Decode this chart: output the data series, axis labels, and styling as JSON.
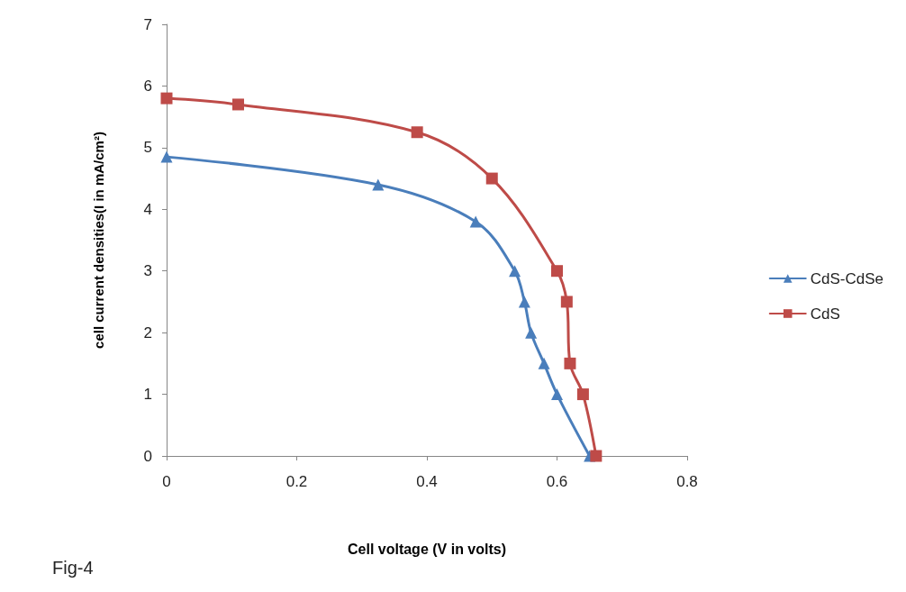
{
  "chart_data": {
    "type": "line",
    "xlabel": "Cell voltage (V in volts)",
    "ylabel": "cell current densities(I in mA/cm²)",
    "xlim": [
      0,
      0.8
    ],
    "xticks": [
      0,
      0.2,
      0.4,
      0.6,
      0.8
    ],
    "ylim": [
      0,
      7
    ],
    "yticks": [
      0,
      1,
      2,
      3,
      4,
      5,
      6,
      7
    ],
    "grid": false,
    "legend": "right",
    "annotations": [
      "Fig-4"
    ],
    "series": [
      {
        "name": "CdS-CdSe",
        "color": "#4a7ebb",
        "marker": "triangle",
        "x": [
          0,
          0.325,
          0.475,
          0.535,
          0.55,
          0.56,
          0.58,
          0.6,
          0.65
        ],
        "values": [
          4.85,
          4.4,
          3.8,
          3.0,
          2.5,
          2.0,
          1.5,
          1.0,
          0
        ]
      },
      {
        "name": "CdS",
        "color": "#be4b48",
        "marker": "square",
        "x": [
          0,
          0.11,
          0.385,
          0.5,
          0.6,
          0.615,
          0.62,
          0.64,
          0.66
        ],
        "values": [
          5.8,
          5.7,
          5.25,
          4.5,
          3.0,
          2.5,
          1.5,
          1.0,
          0
        ]
      }
    ]
  }
}
